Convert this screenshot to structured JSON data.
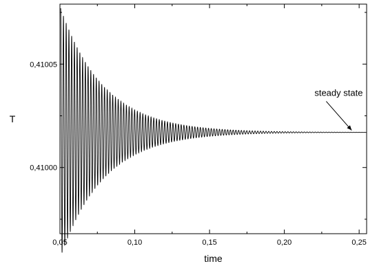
{
  "chart_data": {
    "type": "line",
    "xlabel": "time",
    "ylabel": "T",
    "xlim": [
      0.05,
      0.255
    ],
    "ylim": [
      0.409968,
      0.410079
    ],
    "x_ticks": [
      {
        "value": 0.05,
        "label": "0,05"
      },
      {
        "value": 0.1,
        "label": "0,10"
      },
      {
        "value": 0.15,
        "label": "0,15"
      },
      {
        "value": 0.2,
        "label": "0,20"
      },
      {
        "value": 0.25,
        "label": "0,25"
      }
    ],
    "y_ticks": [
      {
        "value": 0.41,
        "label": "0,41000"
      },
      {
        "value": 0.41005,
        "label": "0,41005"
      }
    ],
    "grid": false,
    "legend": "none",
    "series": [
      {
        "signal": "damped-oscillation",
        "t_start": 0.0505,
        "t_end": 0.255,
        "steady_value": 0.410017,
        "initial_amplitude": 6e-05,
        "decay_time": 0.029,
        "period": 0.00183,
        "color": "#000000"
      }
    ],
    "annotations": [
      {
        "text": "steady state",
        "arrow_from": [
          0.228,
          0.410032
        ],
        "arrow_to": [
          0.245,
          0.410018
        ]
      }
    ]
  }
}
